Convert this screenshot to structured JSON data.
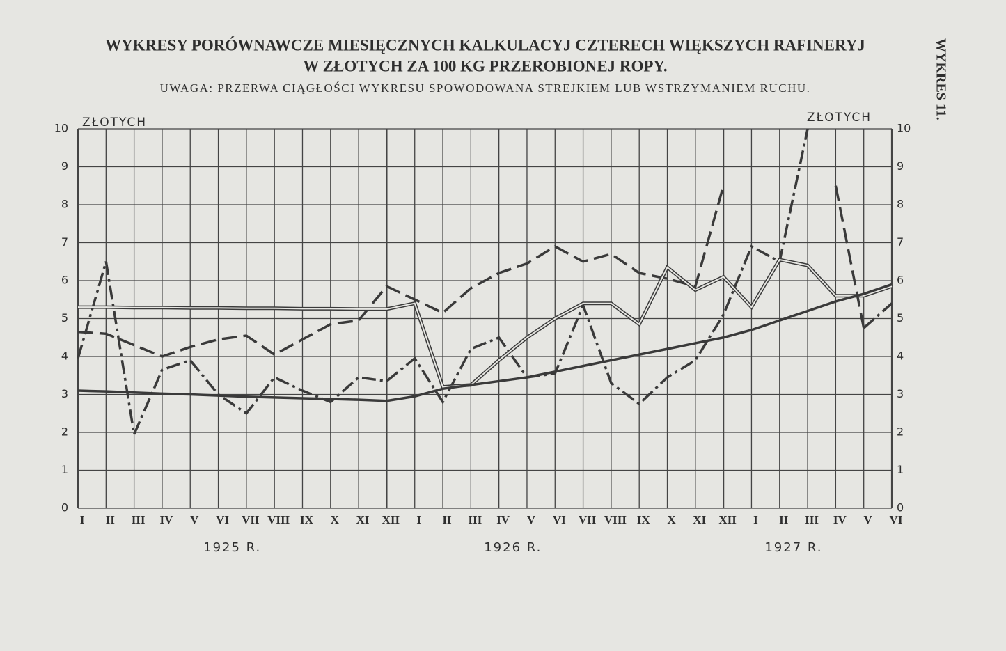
{
  "chart_data": {
    "type": "line",
    "title": "WYKRESY PORÓWNAWCZE MIESIĘCZNYCH KALKULACYJ CZTERECH WIĘKSZYCH RAFINERYJ",
    "subtitle": "W ZŁOTYCH ZA 100 KG PRZEROBIONEJ ROPY.",
    "note": "UWAGA: PRZERWA CIĄGŁOŚCI WYKRESU SPOWODOWANA STREJKIEM LUB WSTRZYMANIEM RUCHU.",
    "side_label": "WYKRES 11.",
    "y_label": "ZŁOTYCH",
    "categories": [
      "I",
      "II",
      "III",
      "IV",
      "V",
      "VI",
      "VII",
      "VIII",
      "IX",
      "X",
      "XI",
      "XII",
      "I",
      "II",
      "III",
      "IV",
      "V",
      "VI",
      "VII",
      "VIII",
      "IX",
      "X",
      "XI",
      "XII",
      "I",
      "II",
      "III",
      "IV",
      "V",
      "VI"
    ],
    "year_labels": [
      "1925 R.",
      "1926 R.",
      "1927 R."
    ],
    "series": [
      {
        "color": "#3a3a3a",
        "style": "dash",
        "values": [
          4.65,
          4.6,
          4.3,
          4.0,
          4.25,
          4.45,
          4.55,
          4.05,
          4.45,
          4.85,
          4.95,
          5.85,
          5.5,
          5.15,
          5.8,
          6.2,
          6.45,
          6.9,
          6.5,
          6.7,
          6.2,
          6.05,
          5.85,
          8.5,
          null,
          null,
          null,
          8.5,
          4.75,
          null
        ]
      },
      {
        "color": "#3a3a3a",
        "style": "dashdot",
        "values": [
          3.95,
          6.5,
          1.95,
          3.65,
          3.9,
          3.0,
          2.5,
          3.45,
          3.1,
          2.8,
          3.45,
          3.35,
          3.95,
          2.8,
          4.2,
          4.5,
          3.45,
          3.55,
          5.35,
          3.3,
          2.75,
          3.45,
          3.9,
          5.1,
          6.9,
          6.5,
          10,
          null,
          4.75,
          5.4
        ]
      },
      {
        "color": "#3a3a3a",
        "style": "double",
        "values": [
          5.3,
          5.3,
          5.29,
          5.29,
          5.28,
          5.28,
          5.27,
          5.27,
          5.26,
          5.26,
          5.25,
          5.25,
          5.4,
          3.2,
          3.25,
          3.9,
          4.5,
          5.0,
          5.4,
          5.4,
          4.85,
          6.35,
          5.75,
          6.1,
          5.3,
          6.55,
          6.4,
          5.6,
          5.6,
          5.85
        ]
      },
      {
        "color": "#3a3a3a",
        "style": "solid",
        "values": [
          3.1,
          3.08,
          3.05,
          3.02,
          3.0,
          2.97,
          2.94,
          2.92,
          2.9,
          2.88,
          2.86,
          2.83,
          2.95,
          3.15,
          3.25,
          3.35,
          3.45,
          3.6,
          3.75,
          3.9,
          4.05,
          4.2,
          4.35,
          4.5,
          4.7,
          4.95,
          5.2,
          5.45,
          5.65,
          5.9
        ]
      }
    ],
    "ylim": [
      0,
      10
    ],
    "yticks": [
      0,
      1,
      2,
      3,
      4,
      5,
      6,
      7,
      8,
      9,
      10
    ],
    "grid": true
  }
}
